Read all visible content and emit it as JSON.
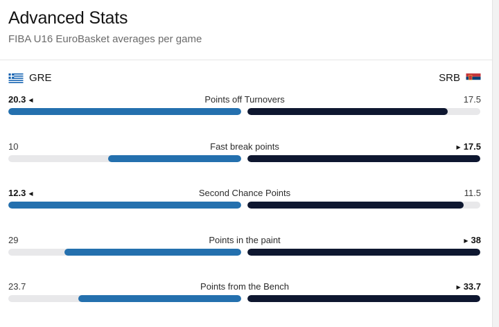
{
  "header": {
    "title": "Advanced Stats",
    "subtitle": "FIBA U16 EuroBasket averages per game"
  },
  "teams": {
    "home": {
      "code": "GRE",
      "flag_icon": "greece-flag-icon"
    },
    "away": {
      "code": "SRB",
      "flag_icon": "serbia-flag-icon"
    }
  },
  "colors": {
    "home_bar": "#2470ae",
    "away_bar": "#0e1730",
    "track": "#e8e8ea"
  },
  "stats": [
    {
      "label": "Points off Turnovers",
      "home": "20.3",
      "away": "17.5",
      "home_fill_pct": 100,
      "away_fill_pct": 86,
      "leader": "home"
    },
    {
      "label": "Fast break points",
      "home": "10",
      "away": "17.5",
      "home_fill_pct": 57,
      "away_fill_pct": 100,
      "leader": "away"
    },
    {
      "label": "Second Chance Points",
      "home": "12.3",
      "away": "11.5",
      "home_fill_pct": 100,
      "away_fill_pct": 93,
      "leader": "home"
    },
    {
      "label": "Points in the paint",
      "home": "29",
      "away": "38",
      "home_fill_pct": 76,
      "away_fill_pct": 100,
      "leader": "away"
    },
    {
      "label": "Points from the Bench",
      "home": "23.7",
      "away": "33.7",
      "home_fill_pct": 70,
      "away_fill_pct": 100,
      "leader": "away"
    }
  ]
}
